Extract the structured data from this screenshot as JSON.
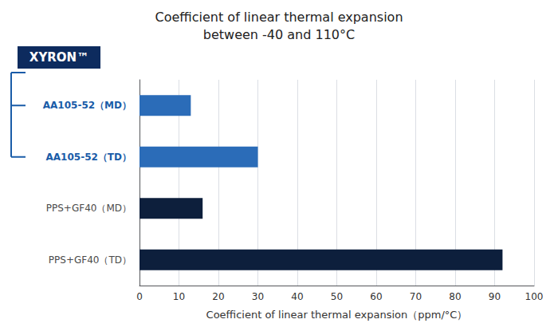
{
  "chart_data": {
    "type": "bar",
    "orientation": "horizontal",
    "title": "Coefficient of linear thermal expansion",
    "subtitle": "between -40 and 110°C",
    "xlabel": "Coefficient of linear thermal expansion（ppm/°C）",
    "annotation": "XYRON™",
    "categories": [
      "AA105-52（MD）",
      "AA105-52（TD）",
      "PPS+GF40（MD）",
      "PPS+GF40（TD）"
    ],
    "values": [
      13,
      30,
      16,
      92
    ],
    "colors": [
      "#2b6cb8",
      "#2b6cb8",
      "#0d1f3c",
      "#0d1f3c"
    ],
    "xlim": [
      0,
      100
    ],
    "xticks": [
      0,
      10,
      20,
      30,
      40,
      50,
      60,
      70,
      80,
      90,
      100
    ],
    "grid": true
  }
}
